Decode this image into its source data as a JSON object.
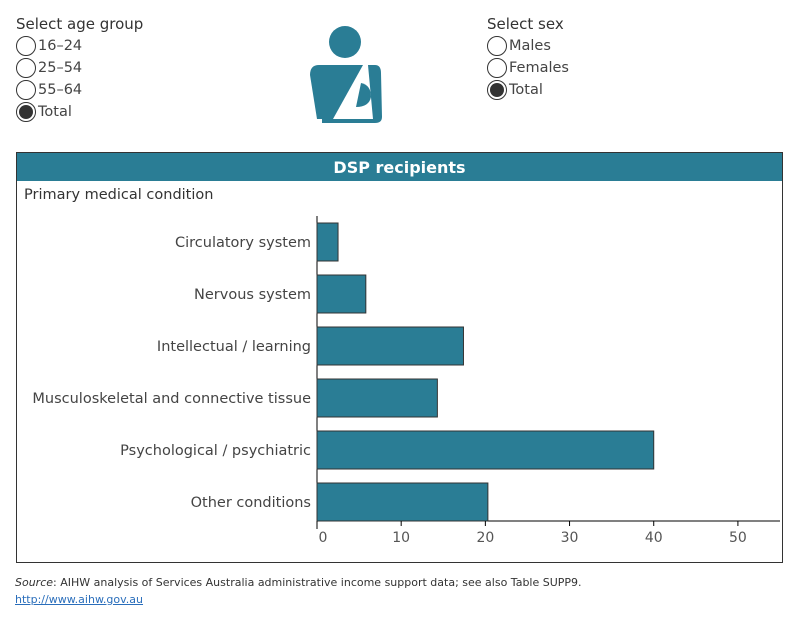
{
  "age_filter": {
    "title": "Select age group",
    "options": [
      {
        "label": "16–24",
        "selected": false
      },
      {
        "label": "25–54",
        "selected": false
      },
      {
        "label": "55–64",
        "selected": false
      },
      {
        "label": "Total",
        "selected": true
      }
    ]
  },
  "sex_filter": {
    "title": "Select sex",
    "options": [
      {
        "label": "Males",
        "selected": false
      },
      {
        "label": "Females",
        "selected": false
      },
      {
        "label": "Total",
        "selected": true
      }
    ]
  },
  "icon": "person-with-arm-sling-icon",
  "panel": {
    "header": "DSP recipients",
    "subtitle": "Primary medical condition"
  },
  "colors": {
    "accent": "#2a7d95"
  },
  "chart_data": {
    "type": "bar",
    "orientation": "horizontal",
    "categories": [
      "Circulatory system",
      "Nervous system",
      "Intellectual / learning",
      "Musculoskeletal and connective tissue",
      "Psychological / psychiatric",
      "Other conditions"
    ],
    "values": [
      2.5,
      5.8,
      17.4,
      14.3,
      40.0,
      20.3
    ],
    "xlim": [
      0,
      55
    ],
    "xticks": [
      0,
      10,
      20,
      30,
      40,
      50
    ],
    "xlabel": "",
    "ylabel": "",
    "grid": false
  },
  "footer": {
    "source_label": "Source",
    "source_text": ": AIHW analysis of Services Australia administrative income support data; see also Table SUPP9.",
    "link": "http://www.aihw.gov.au"
  }
}
